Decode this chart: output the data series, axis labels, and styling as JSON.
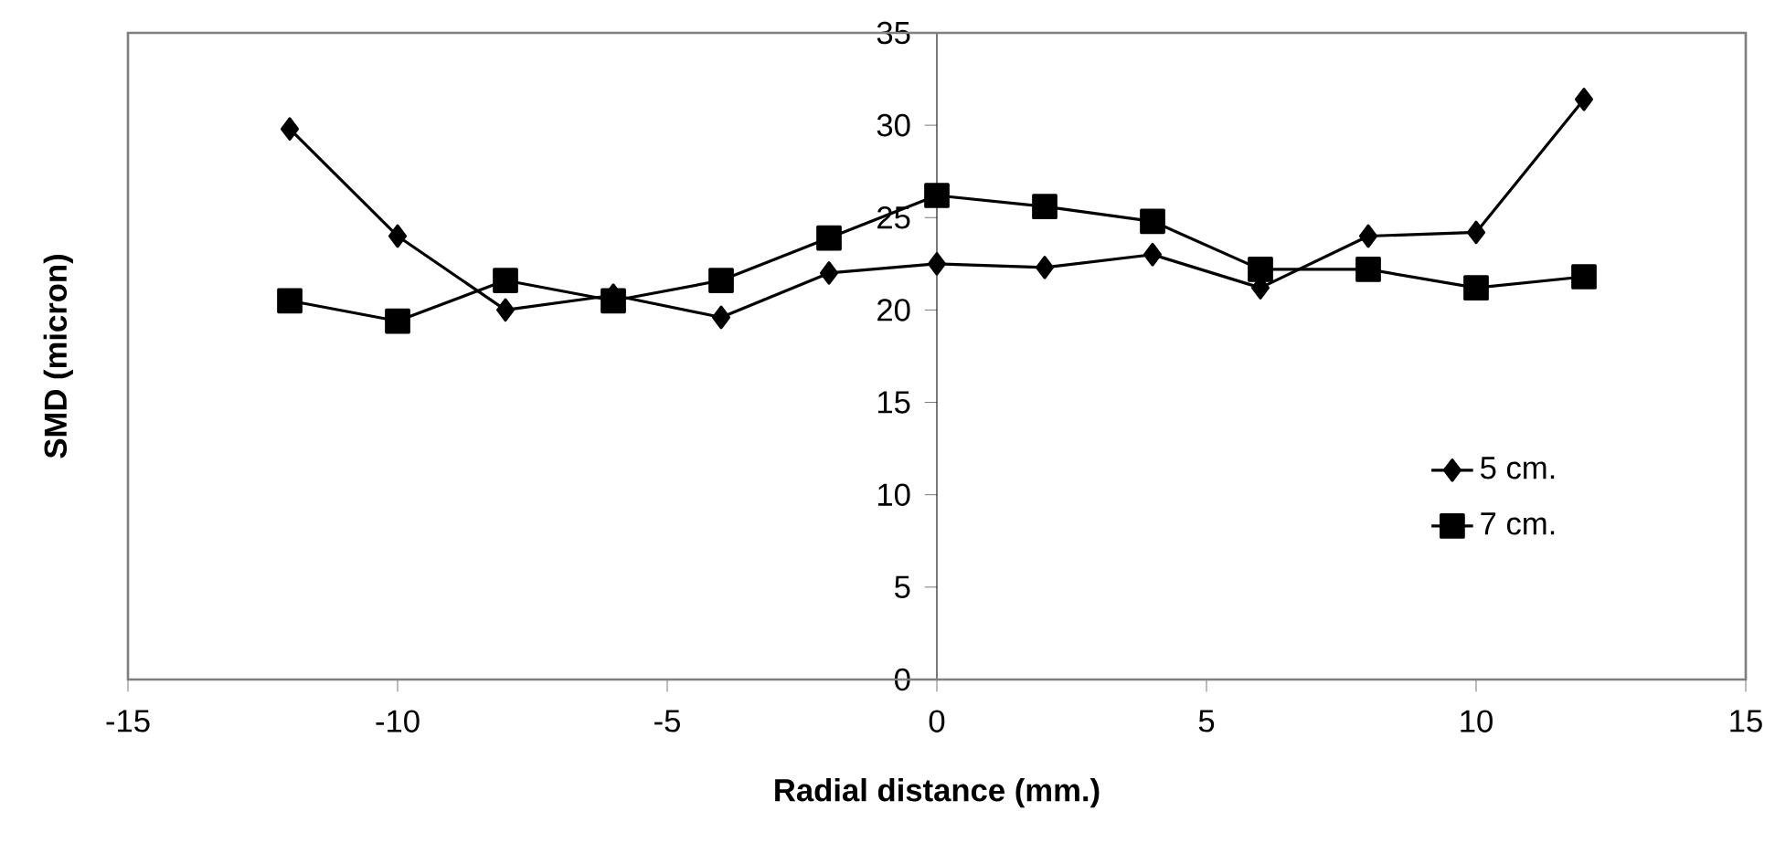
{
  "chart_data": {
    "type": "line",
    "xlabel": "Radial distance (mm.)",
    "ylabel": "SMD (micron)",
    "x": [
      -12,
      -10,
      -8,
      -6,
      -4,
      -2,
      0,
      2,
      4,
      6,
      8,
      10,
      12
    ],
    "series": [
      {
        "name": "5 cm.",
        "color": "#000000",
        "marker": "diamond",
        "values": [
          29.8,
          24.0,
          20.0,
          20.8,
          19.6,
          22.0,
          22.5,
          22.3,
          23.0,
          21.2,
          24.0,
          24.2,
          31.4
        ]
      },
      {
        "name": "7 cm.",
        "color": "#000000",
        "marker": "square",
        "values": [
          20.5,
          19.4,
          21.6,
          20.5,
          21.6,
          23.9,
          26.2,
          25.6,
          24.8,
          22.2,
          22.2,
          21.2,
          21.8
        ]
      }
    ],
    "xlim": [
      -15,
      15
    ],
    "ylim": [
      0,
      35
    ],
    "xticks": [
      -15,
      -10,
      -5,
      0,
      5,
      10,
      15
    ],
    "yticks": [
      0,
      5,
      10,
      15,
      20,
      25,
      30,
      35
    ],
    "grid": false,
    "legend": "right",
    "line_style": "solid"
  }
}
